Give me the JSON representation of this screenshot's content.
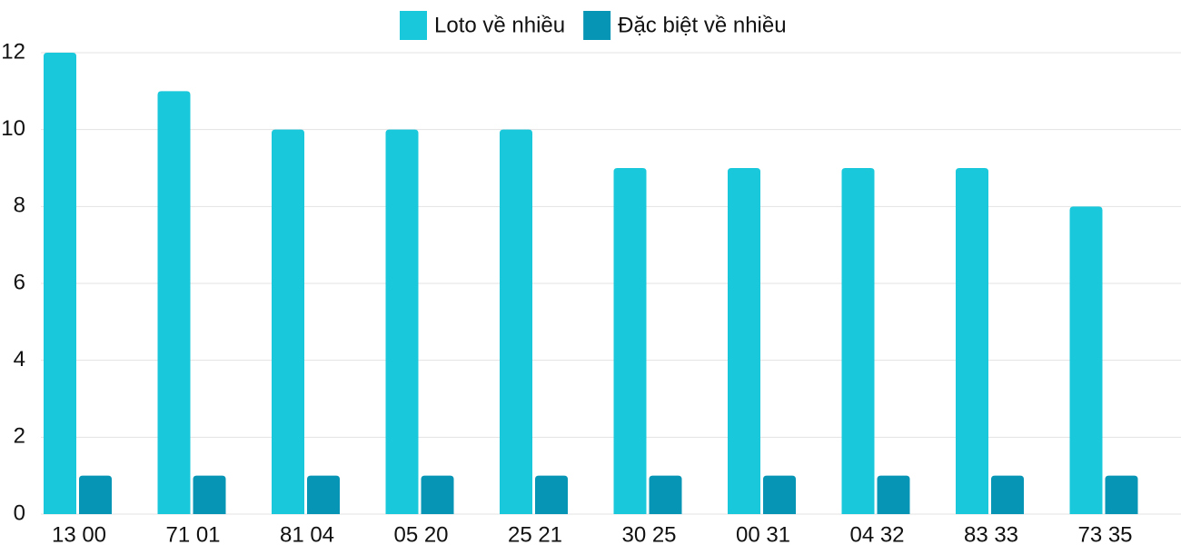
{
  "chart_data": {
    "type": "bar",
    "categories": [
      "13 00",
      "71 01",
      "81 04",
      "05 20",
      "25 21",
      "30 25",
      "00 31",
      "04 32",
      "83 33",
      "73 35"
    ],
    "series": [
      {
        "name": "Loto về nhiều",
        "color": "#1ac8db",
        "values": [
          12,
          11,
          10,
          10,
          10,
          9,
          9,
          9,
          9,
          8
        ]
      },
      {
        "name": "Đặc biệt về nhiều",
        "color": "#0795b5",
        "values": [
          1,
          1,
          1,
          1,
          1,
          1,
          1,
          1,
          1,
          1
        ]
      }
    ],
    "ylim": [
      0,
      12
    ],
    "yticks": [
      0,
      2,
      4,
      6,
      8,
      10,
      12
    ],
    "grid": true,
    "legend": "top"
  }
}
